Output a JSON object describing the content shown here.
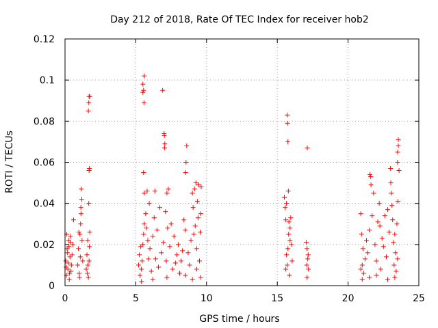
{
  "chart_data": {
    "type": "scatter",
    "title": "Day 212 of 2018, Rate Of TEC Index for receiver hob2",
    "xlabel": "GPS time / hours",
    "ylabel": "ROTI / TECUs",
    "xlim": [
      0,
      25
    ],
    "ylim": [
      0,
      0.12
    ],
    "x_ticks": [
      0,
      5,
      10,
      15,
      20,
      25
    ],
    "x_tick_labels": [
      "0",
      "5",
      "10",
      "15",
      "20",
      "25"
    ],
    "y_ticks": [
      0,
      0.02,
      0.04,
      0.06,
      0.08,
      0.1,
      0.12
    ],
    "y_tick_labels": [
      "0",
      "0.02",
      "0.04",
      "0.06",
      "0.08",
      "0.1",
      "0.12"
    ],
    "grid": true,
    "marker": "plus",
    "marker_color": "#ff0000",
    "series": [
      {
        "name": "ROTI",
        "points": [
          [
            0.05,
            0.012
          ],
          [
            0.1,
            0.005
          ],
          [
            0.15,
            0.018
          ],
          [
            0.2,
            0.008
          ],
          [
            0.25,
            0.022
          ],
          [
            0.3,
            0.003
          ],
          [
            0.35,
            0.014
          ],
          [
            0.12,
            0.025
          ],
          [
            0.22,
            0.011
          ],
          [
            0.28,
            0.019
          ],
          [
            0.08,
            0.009
          ],
          [
            0.32,
            0.006
          ],
          [
            0.18,
            0.016
          ],
          [
            0.4,
            0.021
          ],
          [
            0.45,
            0.01
          ],
          [
            0.5,
            0.015
          ],
          [
            0.38,
            0.024
          ],
          [
            0.42,
            0.007
          ],
          [
            0.6,
            0.032
          ],
          [
            0.55,
            0.02
          ],
          [
            0.9,
            0.01
          ],
          [
            0.95,
            0.018
          ],
          [
            1.0,
            0.006
          ],
          [
            1.05,
            0.025
          ],
          [
            1.1,
            0.03
          ],
          [
            1.12,
            0.038
          ],
          [
            1.15,
            0.047
          ],
          [
            1.08,
            0.014
          ],
          [
            1.2,
            0.022
          ],
          [
            1.18,
            0.042
          ],
          [
            0.98,
            0.026
          ],
          [
            1.02,
            0.004
          ],
          [
            1.25,
            0.012
          ],
          [
            1.13,
            0.035
          ],
          [
            1.5,
            0.008
          ],
          [
            1.55,
            0.015
          ],
          [
            1.6,
            0.022
          ],
          [
            1.65,
            0.004
          ],
          [
            1.7,
            0.012
          ],
          [
            1.72,
            0.019
          ],
          [
            1.75,
            0.026
          ],
          [
            1.68,
            0.04
          ],
          [
            1.7,
            0.056
          ],
          [
            1.72,
            0.057
          ],
          [
            1.65,
            0.085
          ],
          [
            1.68,
            0.089
          ],
          [
            1.7,
            0.092
          ],
          [
            1.75,
            0.092
          ],
          [
            1.62,
            0.01
          ],
          [
            1.58,
            0.006
          ],
          [
            5.2,
            0.01
          ],
          [
            5.25,
            0.015
          ],
          [
            5.3,
            0.005
          ],
          [
            5.35,
            0.019
          ],
          [
            5.4,
            0.008
          ],
          [
            5.45,
            0.012
          ],
          [
            5.5,
            0.02
          ],
          [
            5.55,
            0.025
          ],
          [
            5.6,
            0.03
          ],
          [
            5.6,
            0.045
          ],
          [
            5.55,
            0.055
          ],
          [
            5.5,
            0.094
          ],
          [
            5.55,
            0.095
          ],
          [
            5.6,
            0.102
          ],
          [
            5.5,
            0.098
          ],
          [
            5.58,
            0.089
          ],
          [
            5.7,
            0.035
          ],
          [
            5.75,
            0.028
          ],
          [
            5.8,
            0.046
          ],
          [
            5.85,
            0.022
          ],
          [
            5.9,
            0.013
          ],
          [
            5.95,
            0.04
          ],
          [
            6.0,
            0.018
          ],
          [
            6.1,
            0.007
          ],
          [
            6.2,
            0.024
          ],
          [
            6.3,
            0.033
          ],
          [
            6.35,
            0.046
          ],
          [
            6.4,
            0.013
          ],
          [
            6.5,
            0.027
          ],
          [
            6.6,
            0.009
          ],
          [
            6.7,
            0.038
          ],
          [
            6.8,
            0.016
          ],
          [
            6.9,
            0.095
          ],
          [
            6.95,
            0.021
          ],
          [
            7.0,
            0.074
          ],
          [
            7.02,
            0.073
          ],
          [
            7.05,
            0.069
          ],
          [
            7.03,
            0.067
          ],
          [
            7.1,
            0.036
          ],
          [
            7.15,
            0.012
          ],
          [
            7.2,
            0.045
          ],
          [
            7.25,
            0.028
          ],
          [
            7.3,
            0.047
          ],
          [
            7.4,
            0.019
          ],
          [
            7.5,
            0.03
          ],
          [
            7.6,
            0.008
          ],
          [
            7.7,
            0.024
          ],
          [
            7.8,
            0.011
          ],
          [
            7.9,
            0.015
          ],
          [
            8.0,
            0.02
          ],
          [
            8.1,
            0.006
          ],
          [
            8.2,
            0.012
          ],
          [
            8.3,
            0.017
          ],
          [
            8.4,
            0.032
          ],
          [
            8.5,
            0.027
          ],
          [
            8.55,
            0.06
          ],
          [
            8.6,
            0.068
          ],
          [
            8.52,
            0.055
          ],
          [
            8.7,
            0.016
          ],
          [
            8.8,
            0.01
          ],
          [
            8.9,
            0.022
          ],
          [
            9.0,
            0.045
          ],
          [
            9.05,
            0.038
          ],
          [
            9.1,
            0.025
          ],
          [
            9.15,
            0.047
          ],
          [
            9.2,
            0.029
          ],
          [
            9.25,
            0.05
          ],
          [
            9.3,
            0.018
          ],
          [
            9.35,
            0.041
          ],
          [
            9.4,
            0.033
          ],
          [
            9.45,
            0.049
          ],
          [
            9.5,
            0.012
          ],
          [
            9.55,
            0.026
          ],
          [
            9.6,
            0.035
          ],
          [
            9.62,
            0.048
          ],
          [
            9.58,
            0.004
          ],
          [
            9.3,
            0.008
          ],
          [
            9.0,
            0.003
          ],
          [
            8.5,
            0.005
          ],
          [
            7.2,
            0.004
          ],
          [
            6.2,
            0.003
          ],
          [
            5.4,
            0.002
          ],
          [
            15.5,
            0.043
          ],
          [
            15.55,
            0.038
          ],
          [
            15.6,
            0.032
          ],
          [
            15.65,
            0.04
          ],
          [
            15.7,
            0.01
          ],
          [
            15.75,
            0.018
          ],
          [
            15.8,
            0.025
          ],
          [
            15.85,
            0.005
          ],
          [
            15.9,
            0.028
          ],
          [
            15.95,
            0.033
          ],
          [
            16.0,
            0.02
          ],
          [
            16.05,
            0.012
          ],
          [
            15.78,
            0.046
          ],
          [
            15.7,
            0.083
          ],
          [
            15.72,
            0.079
          ],
          [
            15.75,
            0.07
          ],
          [
            15.82,
            0.031
          ],
          [
            15.6,
            0.008
          ],
          [
            15.65,
            0.015
          ],
          [
            15.9,
            0.022
          ],
          [
            17.05,
            0.021
          ],
          [
            17.1,
            0.018
          ],
          [
            17.15,
            0.013
          ],
          [
            17.2,
            0.008
          ],
          [
            17.1,
            0.004
          ],
          [
            17.12,
            0.067
          ],
          [
            17.18,
            0.015
          ],
          [
            17.08,
            0.01
          ],
          [
            20.9,
            0.035
          ],
          [
            20.95,
            0.025
          ],
          [
            21.0,
            0.01
          ],
          [
            21.05,
            0.018
          ],
          [
            21.1,
            0.006
          ],
          [
            21.2,
            0.013
          ],
          [
            21.3,
            0.022
          ],
          [
            21.4,
            0.016
          ],
          [
            21.5,
            0.027
          ],
          [
            21.55,
            0.054
          ],
          [
            21.6,
            0.053
          ],
          [
            21.62,
            0.049
          ],
          [
            21.7,
            0.034
          ],
          [
            21.8,
            0.045
          ],
          [
            21.9,
            0.02
          ],
          [
            22.0,
            0.012
          ],
          [
            22.1,
            0.031
          ],
          [
            22.2,
            0.04
          ],
          [
            22.25,
            0.029
          ],
          [
            22.3,
            0.008
          ],
          [
            22.4,
            0.023
          ],
          [
            22.5,
            0.019
          ],
          [
            22.6,
            0.034
          ],
          [
            22.7,
            0.014
          ],
          [
            22.8,
            0.037
          ],
          [
            22.9,
            0.026
          ],
          [
            23.0,
            0.057
          ],
          [
            23.02,
            0.05
          ],
          [
            23.05,
            0.045
          ],
          [
            23.1,
            0.039
          ],
          [
            23.15,
            0.032
          ],
          [
            23.2,
            0.021
          ],
          [
            23.25,
            0.01
          ],
          [
            23.3,
            0.025
          ],
          [
            23.35,
            0.016
          ],
          [
            23.4,
            0.007
          ],
          [
            23.45,
            0.03
          ],
          [
            23.5,
            0.06
          ],
          [
            23.52,
            0.041
          ],
          [
            23.55,
            0.068
          ],
          [
            23.5,
            0.065
          ],
          [
            23.55,
            0.071
          ],
          [
            23.6,
            0.056
          ],
          [
            23.5,
            0.013
          ],
          [
            23.3,
            0.004
          ],
          [
            22.8,
            0.003
          ],
          [
            22.0,
            0.005
          ],
          [
            21.5,
            0.004
          ],
          [
            21.0,
            0.003
          ],
          [
            20.9,
            0.008
          ]
        ]
      }
    ]
  }
}
